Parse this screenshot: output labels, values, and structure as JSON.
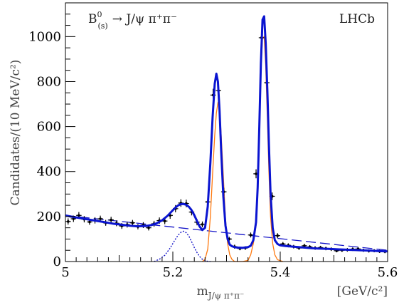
{
  "chart_data": {
    "type": "scatter",
    "title": "",
    "annotation": {
      "decay_base": "B",
      "decay_sup": "0",
      "decay_sub": "(s)",
      "decay_rest": "→ J/ψ π⁺π⁻",
      "experiment": "LHCb"
    },
    "xlabel": {
      "base": "m",
      "sub": "J/ψ π⁺π⁻",
      "unit": "[GeV/c²]"
    },
    "ylabel": "Candidates/(10 MeV/c²)",
    "xlim": [
      5.0,
      5.6
    ],
    "ylim": [
      0,
      1150
    ],
    "x_ticks": [
      "5",
      "5.2",
      "5.4",
      "5.6"
    ],
    "x_tick_values": [
      5.0,
      5.2,
      5.4,
      5.6
    ],
    "y_ticks": [
      "0",
      "200",
      "400",
      "600",
      "800",
      "1000"
    ],
    "y_tick_values": [
      0,
      200,
      400,
      600,
      800,
      1000
    ],
    "grid": false,
    "legend": "none",
    "colors": {
      "data": "#000000",
      "total_fit": "#0a14d0",
      "signal": "#ff7a10",
      "partially_reconstructed": "#1515c8",
      "combinatorial": "#1515c8"
    },
    "series": [
      {
        "role": "data",
        "x": [
          5.005,
          5.015,
          5.025,
          5.035,
          5.045,
          5.055,
          5.065,
          5.075,
          5.085,
          5.095,
          5.105,
          5.115,
          5.125,
          5.135,
          5.145,
          5.155,
          5.165,
          5.175,
          5.185,
          5.195,
          5.205,
          5.215,
          5.225,
          5.235,
          5.245,
          5.255,
          5.265,
          5.275,
          5.285,
          5.295,
          5.305,
          5.315,
          5.325,
          5.335,
          5.345,
          5.355,
          5.365,
          5.375,
          5.385,
          5.395,
          5.405,
          5.415,
          5.425,
          5.435,
          5.445,
          5.455,
          5.465,
          5.475,
          5.485,
          5.495,
          5.505,
          5.515,
          5.525,
          5.535,
          5.545,
          5.555,
          5.565,
          5.575,
          5.585,
          5.595
        ],
        "y": [
          178,
          190,
          205,
          188,
          176,
          183,
          190,
          172,
          185,
          170,
          158,
          164,
          172,
          155,
          162,
          150,
          168,
          182,
          180,
          205,
          235,
          260,
          258,
          220,
          175,
          165,
          265,
          740,
          760,
          310,
          100,
          66,
          58,
          60,
          118,
          390,
          995,
          795,
          290,
          115,
          78,
          72,
          66,
          60,
          70,
          65,
          60,
          62,
          58,
          55,
          48,
          50,
          52,
          55,
          56,
          50,
          47,
          48,
          45,
          44
        ],
        "err": [
          14,
          14,
          15,
          14,
          13,
          14,
          14,
          13,
          14,
          13,
          13,
          13,
          13,
          12,
          13,
          12,
          13,
          14,
          14,
          15,
          16,
          17,
          17,
          15,
          14,
          13,
          17,
          28,
          28,
          18,
          10,
          9,
          8,
          8,
          11,
          20,
          32,
          29,
          17,
          11,
          9,
          9,
          8,
          8,
          9,
          8,
          8,
          8,
          8,
          8,
          7,
          7,
          8,
          8,
          8,
          7,
          7,
          7,
          7,
          7
        ]
      },
      {
        "role": "total_fit",
        "x": [
          5.0,
          5.01,
          5.02,
          5.03,
          5.04,
          5.05,
          5.06,
          5.07,
          5.08,
          5.09,
          5.1,
          5.11,
          5.12,
          5.13,
          5.14,
          5.15,
          5.16,
          5.17,
          5.18,
          5.19,
          5.2,
          5.205,
          5.21,
          5.215,
          5.22,
          5.225,
          5.23,
          5.235,
          5.24,
          5.245,
          5.25,
          5.255,
          5.26,
          5.265,
          5.27,
          5.274,
          5.278,
          5.281,
          5.284,
          5.287,
          5.29,
          5.294,
          5.298,
          5.302,
          5.306,
          5.31,
          5.315,
          5.32,
          5.33,
          5.34,
          5.345,
          5.35,
          5.355,
          5.358,
          5.361,
          5.364,
          5.367,
          5.37,
          5.373,
          5.376,
          5.379,
          5.382,
          5.386,
          5.39,
          5.395,
          5.4,
          5.41,
          5.42,
          5.43,
          5.44,
          5.45,
          5.46,
          5.47,
          5.48,
          5.49,
          5.5,
          5.51,
          5.52,
          5.53,
          5.54,
          5.55,
          5.56,
          5.57,
          5.58,
          5.59,
          5.6
        ],
        "y": [
          205,
          200,
          196,
          192,
          188,
          184,
          180,
          176,
          172,
          168,
          165,
          162,
          159,
          157,
          157,
          158,
          162,
          170,
          183,
          203,
          228,
          240,
          250,
          255,
          256,
          252,
          243,
          228,
          206,
          180,
          155,
          140,
          150,
          245,
          440,
          640,
          790,
          835,
          800,
          670,
          490,
          290,
          160,
          100,
          75,
          68,
          64,
          62,
          61,
          64,
          70,
          95,
          175,
          330,
          600,
          880,
          1075,
          1090,
          970,
          760,
          520,
          300,
          150,
          95,
          78,
          72,
          69,
          67,
          65,
          63,
          61,
          59,
          58,
          57,
          56,
          55,
          54,
          53,
          52,
          51,
          50,
          49,
          48,
          47,
          46,
          45
        ]
      },
      {
        "role": "signal",
        "x": [
          5.255,
          5.26,
          5.265,
          5.27,
          5.274,
          5.278,
          5.281,
          5.284,
          5.287,
          5.29,
          5.294,
          5.298,
          5.302,
          5.306,
          5.31,
          5.315,
          5.33,
          5.34,
          5.345,
          5.35,
          5.355,
          5.358,
          5.361,
          5.364,
          5.367,
          5.37,
          5.373,
          5.376,
          5.379,
          5.382,
          5.386,
          5.39,
          5.395,
          5.405
        ],
        "y": [
          0,
          10,
          55,
          200,
          390,
          560,
          660,
          705,
          690,
          560,
          380,
          190,
          80,
          30,
          10,
          0,
          0,
          5,
          30,
          80,
          160,
          330,
          590,
          850,
          990,
          1000,
          870,
          640,
          400,
          200,
          80,
          30,
          8,
          0
        ]
      },
      {
        "role": "partially_reconstructed",
        "x": [
          5.165,
          5.175,
          5.185,
          5.195,
          5.2,
          5.205,
          5.21,
          5.215,
          5.22,
          5.225,
          5.23,
          5.235,
          5.24,
          5.245,
          5.25,
          5.255,
          5.26,
          5.265,
          5.27
        ],
        "y": [
          0,
          10,
          28,
          60,
          80,
          100,
          118,
          130,
          135,
          128,
          112,
          88,
          62,
          40,
          22,
          10,
          4,
          1,
          0
        ]
      },
      {
        "role": "combinatorial",
        "x": [
          5.0,
          5.6
        ],
        "y": [
          205,
          50
        ]
      }
    ]
  }
}
